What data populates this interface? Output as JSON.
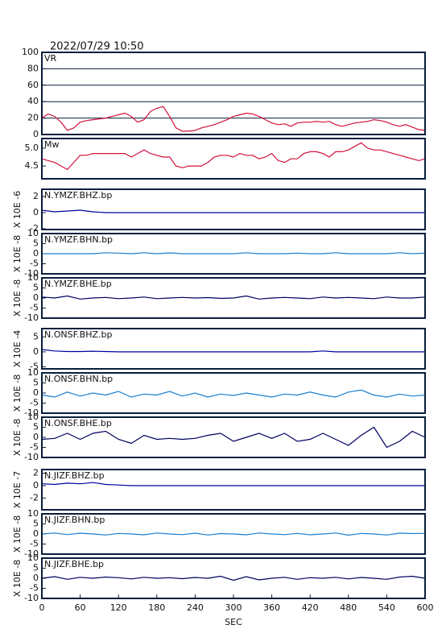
{
  "title": "2022/07/29  10:50",
  "chart_data": [
    {
      "type": "line",
      "label": "VR",
      "color": "#d0103a",
      "ylim": [
        0,
        100
      ],
      "yticks": [
        0,
        20,
        40,
        60,
        80,
        100
      ],
      "grid": true,
      "xlim": [
        0,
        600
      ],
      "x": [
        0,
        10,
        20,
        30,
        40,
        50,
        60,
        70,
        80,
        90,
        100,
        110,
        120,
        130,
        140,
        150,
        160,
        170,
        180,
        190,
        200,
        210,
        220,
        230,
        240,
        250,
        260,
        270,
        280,
        290,
        300,
        310,
        320,
        330,
        340,
        350,
        360,
        370,
        380,
        390,
        400,
        410,
        420,
        430,
        440,
        450,
        460,
        470,
        480,
        490,
        500,
        510,
        520,
        530,
        540,
        550,
        560,
        570,
        580,
        590,
        600
      ],
      "values": [
        20,
        25,
        22,
        15,
        5,
        8,
        15,
        17,
        18,
        19,
        20,
        22,
        24,
        26,
        22,
        15,
        18,
        28,
        32,
        34,
        22,
        8,
        4,
        4,
        5,
        8,
        10,
        12,
        15,
        18,
        22,
        24,
        26,
        25,
        22,
        18,
        14,
        12,
        13,
        10,
        14,
        15,
        15,
        16,
        15,
        16,
        12,
        10,
        12,
        14,
        15,
        16,
        18,
        17,
        15,
        12,
        10,
        12,
        9,
        6,
        5
      ]
    },
    {
      "type": "line",
      "label": "Mw",
      "color": "#d0103a",
      "ylim": [
        4.14,
        5.27
      ],
      "yticks": [
        4.5,
        {
          "value": 5,
          "label": "5.0"
        }
      ],
      "grid": false,
      "xlim": [
        0,
        600
      ],
      "x": [
        0,
        10,
        20,
        30,
        40,
        50,
        60,
        70,
        80,
        90,
        100,
        110,
        120,
        130,
        140,
        150,
        160,
        170,
        180,
        190,
        200,
        210,
        220,
        230,
        240,
        250,
        260,
        270,
        280,
        290,
        300,
        310,
        320,
        330,
        340,
        350,
        360,
        370,
        380,
        390,
        400,
        410,
        420,
        430,
        440,
        450,
        460,
        470,
        480,
        490,
        500,
        510,
        520,
        530,
        540,
        550,
        560,
        570,
        580,
        590,
        600
      ],
      "values": [
        4.7,
        4.65,
        4.6,
        4.5,
        4.4,
        4.6,
        4.8,
        4.8,
        4.85,
        4.85,
        4.85,
        4.85,
        4.85,
        4.85,
        4.75,
        4.85,
        4.95,
        4.85,
        4.8,
        4.75,
        4.75,
        4.5,
        4.45,
        4.5,
        4.5,
        4.5,
        4.6,
        4.75,
        4.8,
        4.8,
        4.75,
        4.85,
        4.8,
        4.8,
        4.7,
        4.75,
        4.85,
        4.65,
        4.6,
        4.7,
        4.7,
        4.85,
        4.9,
        4.9,
        4.85,
        4.75,
        4.9,
        4.9,
        4.95,
        5.05,
        5.15,
        5.0,
        4.95,
        4.95,
        4.9,
        4.85,
        4.8,
        4.75,
        4.7,
        4.65,
        4.7
      ]
    },
    {
      "type": "line",
      "label": "N.YMZF.BHZ.bp",
      "ylabel": "X 10E -6",
      "color": "#0000a0",
      "ylim": [
        -2.1,
        2.9
      ],
      "yticks": [
        -2,
        0,
        2
      ],
      "xlim": [
        0,
        600
      ],
      "x": [
        0,
        20,
        40,
        60,
        80,
        100,
        120,
        140,
        160,
        180,
        200,
        220,
        240,
        260,
        280,
        300,
        320,
        340,
        360,
        380,
        400,
        420,
        440,
        460,
        480,
        500,
        520,
        540,
        560,
        580,
        600
      ],
      "values": [
        0.3,
        0.1,
        0.2,
        0.3,
        0.1,
        0,
        0,
        0,
        0,
        0,
        0,
        0,
        0,
        0,
        0,
        0,
        0,
        0,
        0,
        0,
        0,
        0,
        0,
        0,
        0,
        0,
        0,
        0,
        0,
        0,
        0
      ]
    },
    {
      "type": "line",
      "label": "N.YMZF.BHN.bp",
      "ylabel": "X 10E -8",
      "color": "#1a7fd0",
      "ylim": [
        -10,
        10
      ],
      "yticks": [
        -10,
        -5,
        0,
        5,
        10
      ],
      "xlim": [
        0,
        600
      ],
      "x": [
        0,
        20,
        40,
        60,
        80,
        100,
        120,
        140,
        160,
        180,
        200,
        220,
        240,
        260,
        280,
        300,
        320,
        340,
        360,
        380,
        400,
        420,
        440,
        460,
        480,
        500,
        520,
        540,
        560,
        580,
        600
      ],
      "values": [
        0,
        0,
        0,
        0,
        0,
        0.5,
        0.3,
        0,
        0.5,
        0,
        0.4,
        0,
        0,
        0,
        0,
        0,
        0.5,
        0,
        0,
        0,
        0.3,
        0,
        0,
        0.5,
        0,
        0,
        0,
        0,
        0.5,
        0,
        0.3
      ]
    },
    {
      "type": "line",
      "label": "N.YMZF.BHE.bp",
      "ylabel": "X 10E -8",
      "color": "#000060",
      "ylim": [
        -10,
        10
      ],
      "yticks": [
        -10,
        -5,
        0,
        5,
        10
      ],
      "xlim": [
        0,
        600
      ],
      "x": [
        0,
        20,
        40,
        60,
        80,
        100,
        120,
        140,
        160,
        180,
        200,
        220,
        240,
        260,
        280,
        300,
        320,
        340,
        360,
        380,
        400,
        420,
        440,
        460,
        480,
        500,
        520,
        540,
        560,
        580,
        600
      ],
      "values": [
        0.5,
        0,
        1,
        -0.5,
        0,
        0.3,
        -0.3,
        0,
        0.5,
        -0.3,
        0,
        0.3,
        0,
        0.2,
        -0.2,
        0,
        1,
        -0.5,
        0,
        0.3,
        0,
        -0.3,
        0.5,
        0,
        0.3,
        0,
        -0.3,
        0.5,
        0,
        0,
        0.5
      ]
    },
    {
      "type": "line",
      "label": "N.ONSF.BHZ.bp",
      "ylabel": "X 10E -4",
      "color": "#0000a0",
      "ylim": [
        -5.7,
        7.8
      ],
      "yticks": [
        -5,
        0,
        5
      ],
      "xlim": [
        0,
        600
      ],
      "x": [
        0,
        20,
        40,
        60,
        80,
        100,
        120,
        140,
        160,
        180,
        200,
        220,
        240,
        260,
        280,
        300,
        320,
        340,
        360,
        380,
        400,
        420,
        440,
        460,
        480,
        500,
        520,
        540,
        560,
        580,
        600
      ],
      "values": [
        0.8,
        0.3,
        0.1,
        0.1,
        0.2,
        0.1,
        0,
        0,
        0,
        0,
        0,
        0,
        0,
        0,
        0,
        0,
        0,
        0,
        0,
        0,
        0,
        0,
        0.3,
        0,
        0,
        0,
        0,
        0,
        0,
        0,
        0
      ]
    },
    {
      "type": "line",
      "label": "N.ONSF.BHN.bp",
      "ylabel": "X 10E -8",
      "color": "#1a7fd0",
      "ylim": [
        -10,
        10
      ],
      "yticks": [
        -10,
        -5,
        0,
        5,
        10
      ],
      "xlim": [
        0,
        600
      ],
      "x": [
        0,
        20,
        40,
        60,
        80,
        100,
        120,
        140,
        160,
        180,
        200,
        220,
        240,
        260,
        280,
        300,
        320,
        340,
        360,
        380,
        400,
        420,
        440,
        460,
        480,
        500,
        520,
        540,
        560,
        580,
        600
      ],
      "values": [
        -1,
        -2,
        0.5,
        -1.5,
        0,
        -1,
        0.8,
        -2,
        -0.5,
        -1,
        0.8,
        -1.5,
        0,
        -2,
        -0.5,
        -1.2,
        0,
        -1,
        -2,
        -0.5,
        -1,
        0.5,
        -1,
        -2,
        0.5,
        1.5,
        -1,
        -2,
        -0.5,
        -1.5,
        -1
      ]
    },
    {
      "type": "line",
      "label": "N.ONSF.BHE.bp",
      "ylabel": "X 10E -8",
      "color": "#000060",
      "ylim": [
        -10,
        10
      ],
      "yticks": [
        -10,
        -5,
        0,
        5,
        10
      ],
      "xlim": [
        0,
        600
      ],
      "x": [
        0,
        20,
        40,
        60,
        80,
        100,
        120,
        140,
        160,
        180,
        200,
        220,
        240,
        260,
        280,
        300,
        320,
        340,
        360,
        380,
        400,
        420,
        440,
        460,
        480,
        500,
        520,
        540,
        560,
        580,
        600
      ],
      "values": [
        -1,
        -0.5,
        2,
        -1,
        2,
        3,
        -1,
        -3,
        1,
        -1,
        -0.5,
        -1,
        -0.5,
        1,
        2,
        -2,
        0,
        2,
        -0.5,
        2,
        -2,
        -1,
        2,
        -1,
        -4,
        1,
        5,
        -5,
        -2,
        3,
        0
      ]
    },
    {
      "type": "line",
      "label": "N.JIZF.BHZ.bp",
      "ylabel": "X 10E -7",
      "color": "#0000a0",
      "ylim": [
        -3.9,
        2.6
      ],
      "yticks": [
        -2,
        0,
        2
      ],
      "xlim": [
        0,
        600
      ],
      "x": [
        0,
        20,
        40,
        60,
        80,
        100,
        120,
        140,
        160,
        180,
        200,
        220,
        240,
        260,
        280,
        300,
        320,
        340,
        360,
        380,
        400,
        420,
        440,
        460,
        480,
        500,
        520,
        540,
        560,
        580,
        600
      ],
      "values": [
        0.3,
        0.2,
        0.4,
        0.3,
        0.5,
        0.2,
        0.1,
        0,
        0,
        0,
        0,
        0,
        0,
        0,
        0,
        0,
        0,
        0,
        0,
        0,
        0,
        0,
        0,
        0,
        0,
        0,
        0,
        0,
        0,
        0,
        0
      ]
    },
    {
      "type": "line",
      "label": "N.JIZF.BHN.bp",
      "ylabel": "X 10E -8",
      "color": "#1a7fd0",
      "ylim": [
        -10,
        10
      ],
      "yticks": [
        -10,
        -5,
        0,
        5,
        10
      ],
      "xlim": [
        0,
        600
      ],
      "x": [
        0,
        20,
        40,
        60,
        80,
        100,
        120,
        140,
        160,
        180,
        200,
        220,
        240,
        260,
        280,
        300,
        320,
        340,
        360,
        380,
        400,
        420,
        440,
        460,
        480,
        500,
        520,
        540,
        560,
        580,
        600
      ],
      "values": [
        0,
        0.5,
        -0.3,
        0.4,
        0,
        -0.5,
        0.3,
        0,
        -0.4,
        0.5,
        0,
        -0.3,
        0.4,
        -0.5,
        0.2,
        0,
        -0.4,
        0.5,
        0,
        -0.3,
        0.3,
        -0.4,
        0,
        0.5,
        -0.6,
        0.3,
        0,
        -0.5,
        0.4,
        0.2,
        0.3
      ]
    },
    {
      "type": "line",
      "label": "N.JIZF.BHE.bp",
      "ylabel": "X 10E -8",
      "color": "#000060",
      "ylim": [
        -10,
        10
      ],
      "yticks": [
        -10,
        -5,
        0,
        5,
        10
      ],
      "xlim": [
        0,
        600
      ],
      "xticks": [
        0,
        60,
        120,
        180,
        240,
        300,
        360,
        420,
        480,
        540,
        600
      ],
      "xlabel": "SEC",
      "x": [
        0,
        20,
        40,
        60,
        80,
        100,
        120,
        140,
        160,
        180,
        200,
        220,
        240,
        260,
        280,
        300,
        320,
        340,
        360,
        380,
        400,
        420,
        440,
        460,
        480,
        500,
        520,
        540,
        560,
        580,
        600
      ],
      "values": [
        0,
        0.8,
        -0.5,
        0.5,
        0,
        0.6,
        0.3,
        -0.3,
        0.5,
        0,
        0.3,
        -0.2,
        0.4,
        0,
        1,
        -1,
        0.8,
        -0.8,
        0,
        0.5,
        -0.5,
        0.3,
        0,
        0.5,
        -0.3,
        0.4,
        0,
        -0.5,
        0.6,
        1,
        0
      ]
    }
  ]
}
